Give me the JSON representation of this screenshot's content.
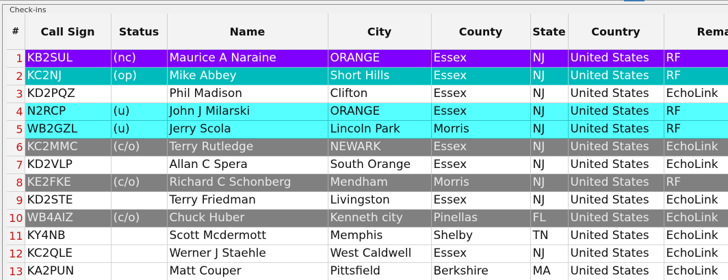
{
  "panel": {
    "title": "Check-ins"
  },
  "colors": {
    "nc_row": "#7f00ff",
    "op_row": "#00bbbb",
    "u_row": "#55ffff",
    "co_row": "#808080",
    "default_row": "#ffffff",
    "row_number": "#d01010"
  },
  "table": {
    "headers": {
      "num": "#",
      "call_sign": "Call Sign",
      "status": "Status",
      "name": "Name",
      "city": "City",
      "county": "County",
      "state": "State",
      "country": "Country",
      "remarks": "Rema"
    },
    "rows": [
      {
        "num": "1",
        "call_sign": "KB2SUL",
        "status": "(nc)",
        "name": "Maurice A Naraine",
        "city": "ORANGE",
        "county": "Essex",
        "state": "NJ",
        "country": "United States",
        "remarks": "RF"
      },
      {
        "num": "2",
        "call_sign": "KC2NJ",
        "status": "(op)",
        "name": "Mike Abbey",
        "city": "Short Hills",
        "county": "Essex",
        "state": "NJ",
        "country": "United States",
        "remarks": "RF"
      },
      {
        "num": "3",
        "call_sign": "KD2PQZ",
        "status": "",
        "name": "Phil Madison",
        "city": "Clifton",
        "county": "Essex",
        "state": "NJ",
        "country": "United States",
        "remarks": "EchoLink"
      },
      {
        "num": "4",
        "call_sign": "N2RCP",
        "status": "(u)",
        "name": "John J Milarski",
        "city": "ORANGE",
        "county": "Essex",
        "state": "NJ",
        "country": "United States",
        "remarks": "RF"
      },
      {
        "num": "5",
        "call_sign": "WB2GZL",
        "status": "(u)",
        "name": "Jerry Scola",
        "city": "Lincoln Park",
        "county": "Morris",
        "state": "NJ",
        "country": "United States",
        "remarks": "RF"
      },
      {
        "num": "6",
        "call_sign": "KC2MMC",
        "status": "(c/o)",
        "name": "Terry Rutledge",
        "city": "NEWARK",
        "county": "Essex",
        "state": "NJ",
        "country": "United States",
        "remarks": "EchoLink"
      },
      {
        "num": "7",
        "call_sign": "KD2VLP",
        "status": "",
        "name": "Allan C Spera",
        "city": "South Orange",
        "county": "Essex",
        "state": "NJ",
        "country": "United States",
        "remarks": "EchoLink"
      },
      {
        "num": "8",
        "call_sign": "KE2FKE",
        "status": "(c/o)",
        "name": "Richard C Schonberg",
        "city": "Mendham",
        "county": "Morris",
        "state": "NJ",
        "country": "United States",
        "remarks": "RF"
      },
      {
        "num": "9",
        "call_sign": "KD2STE",
        "status": "",
        "name": "Terry Friedman",
        "city": "Livingston",
        "county": "Essex",
        "state": "NJ",
        "country": "United States",
        "remarks": "EchoLink"
      },
      {
        "num": "10",
        "call_sign": "WB4AIZ",
        "status": "(c/o)",
        "name": "Chuck Huber",
        "city": "Kenneth city",
        "county": "Pinellas",
        "state": "FL",
        "country": "United States",
        "remarks": "EchoLink"
      },
      {
        "num": "11",
        "call_sign": "KY4NB",
        "status": "",
        "name": "Scott Mcdermott",
        "city": "Memphis",
        "county": "Shelby",
        "state": "TN",
        "country": "United States",
        "remarks": "EchoLink"
      },
      {
        "num": "12",
        "call_sign": "KC2QLE",
        "status": "",
        "name": "Werner J Staehle",
        "city": "West Caldwell",
        "county": "Essex",
        "state": "NJ",
        "country": "United States",
        "remarks": "EchoLink"
      },
      {
        "num": "13",
        "call_sign": "KA2PUN",
        "status": "",
        "name": "Matt Couper",
        "city": "Pittsfield",
        "county": "Berkshire",
        "state": "MA",
        "country": "United States",
        "remarks": "EchoLink"
      }
    ]
  }
}
